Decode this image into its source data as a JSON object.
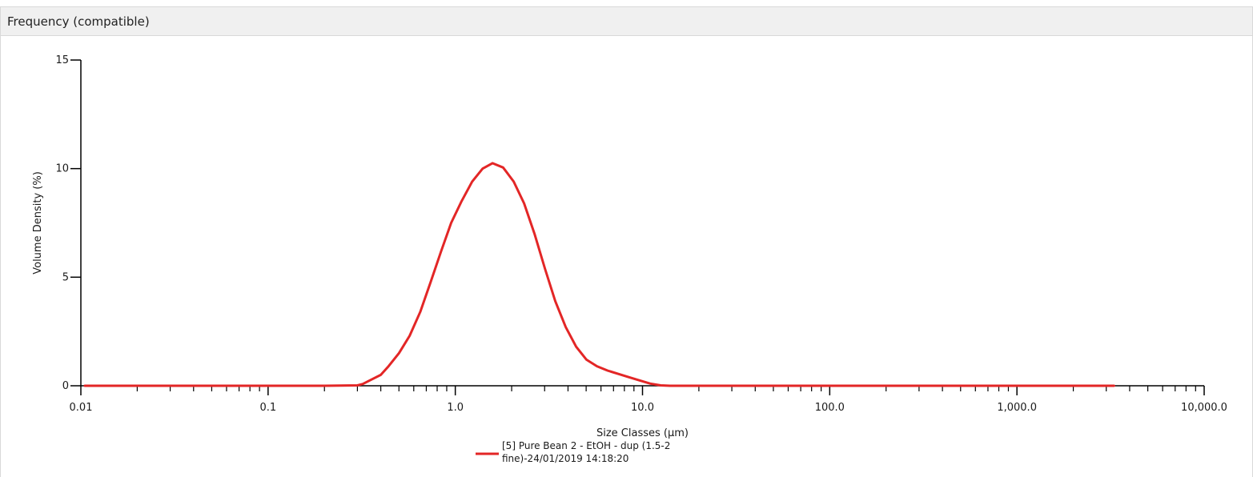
{
  "panel": {
    "title": "Frequency (compatible)"
  },
  "chart_data": {
    "type": "line",
    "xlabel": "Size Classes (µm)",
    "ylabel": "Volume Density (%)",
    "x_scale": "log",
    "xlim": [
      0.01,
      10000
    ],
    "ylim": [
      0,
      15
    ],
    "x_ticks": [
      0.01,
      0.1,
      1.0,
      10.0,
      100.0,
      1000.0,
      10000.0
    ],
    "x_tick_labels": [
      "0.01",
      "0.1",
      "1.0",
      "10.0",
      "100.0",
      "1,000.0",
      "10,000.0"
    ],
    "y_ticks": [
      0,
      5,
      10,
      15
    ],
    "y_tick_labels": [
      "0",
      "5",
      "10",
      "15"
    ],
    "grid": false,
    "legend_position": "bottom-center",
    "series": [
      {
        "name": "[5] Pure Bean 2 - EtOH - dup (1.5-2 fine)-24/01/2019 14:18:20",
        "color": "#e32626",
        "x": [
          0.0105,
          0.02,
          0.05,
          0.1,
          0.2,
          0.3,
          0.32,
          0.35,
          0.4,
          0.44,
          0.5,
          0.57,
          0.65,
          0.74,
          0.84,
          0.95,
          1.08,
          1.23,
          1.4,
          1.58,
          1.8,
          2.05,
          2.33,
          2.65,
          3.01,
          3.42,
          3.89,
          4.42,
          5.02,
          5.71,
          6.5,
          7.4,
          8.4,
          9.6,
          11.0,
          12.5,
          14,
          20,
          50,
          100,
          500,
          1000,
          3300
        ],
        "y": [
          0,
          0,
          0,
          0,
          0,
          0.02,
          0.08,
          0.25,
          0.5,
          0.9,
          1.5,
          2.3,
          3.4,
          4.8,
          6.2,
          7.5,
          8.5,
          9.4,
          10.0,
          10.25,
          10.05,
          9.4,
          8.4,
          7.0,
          5.4,
          3.9,
          2.7,
          1.8,
          1.2,
          0.9,
          0.7,
          0.55,
          0.4,
          0.25,
          0.1,
          0.02,
          0,
          0,
          0,
          0,
          0,
          0,
          0
        ]
      }
    ]
  }
}
